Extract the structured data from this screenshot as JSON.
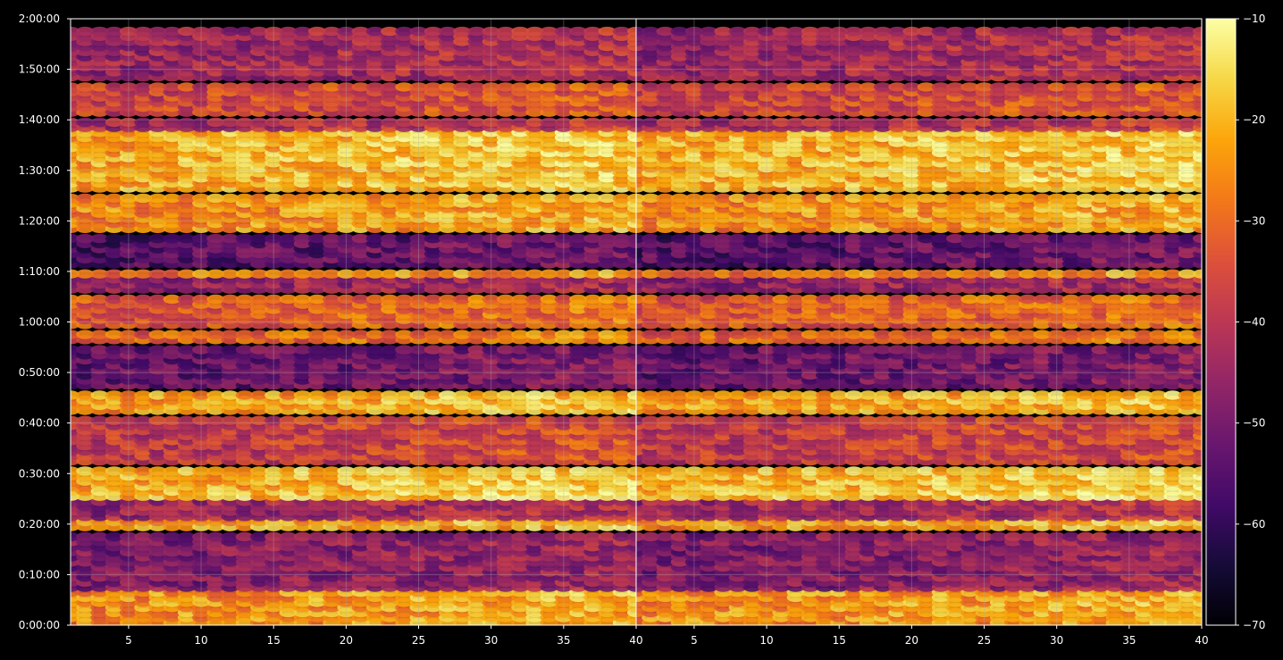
{
  "chart_data": {
    "type": "heatmap",
    "panels": [
      {
        "id": "left",
        "x_ticks": [
          5,
          10,
          15,
          20,
          25,
          30,
          35,
          40
        ],
        "xlim": [
          1,
          40
        ],
        "active_x_from": 1,
        "grid": true
      },
      {
        "id": "right",
        "x_ticks": [
          5,
          10,
          15,
          20,
          25,
          30,
          35,
          40
        ],
        "xlim": [
          1,
          40
        ],
        "active_x_from": 1,
        "grid": true
      }
    ],
    "y_axis": {
      "ylim_seconds": [
        0,
        7200
      ],
      "tick_seconds": [
        0,
        600,
        1200,
        1800,
        2400,
        3000,
        3600,
        4200,
        4800,
        5400,
        6000,
        6600,
        7200
      ],
      "tick_labels": [
        "0:00:00",
        "0:10:00",
        "0:20:00",
        "0:30:00",
        "0:40:00",
        "0:50:00",
        "1:00:00",
        "1:10:00",
        "1:20:00",
        "1:30:00",
        "1:40:00",
        "1:50:00",
        "2:00:00"
      ]
    },
    "colorbar": {
      "colormap": "inferno",
      "range": [
        -70,
        -10
      ],
      "tick_values": [
        -70,
        -60,
        -50,
        -40,
        -30,
        -20,
        -10
      ],
      "tick_labels": [
        "−70",
        "−60",
        "−50",
        "−40",
        "−30",
        "−20",
        "−10"
      ]
    },
    "row_spacing_seconds": 60,
    "bands": [
      {
        "from_s": 0,
        "to_s": 420,
        "level_dB": -26
      },
      {
        "from_s": 420,
        "to_s": 1080,
        "level_dB": -50
      },
      {
        "from_s": 1140,
        "to_s": 1260,
        "level_dB": -24
      },
      {
        "from_s": 1260,
        "to_s": 1500,
        "level_dB": -46
      },
      {
        "from_s": 1500,
        "to_s": 1620,
        "level_dB": -20
      },
      {
        "from_s": 1620,
        "to_s": 1860,
        "level_dB": -22
      },
      {
        "from_s": 1920,
        "to_s": 2460,
        "level_dB": -40
      },
      {
        "from_s": 2520,
        "to_s": 2760,
        "level_dB": -24
      },
      {
        "from_s": 2820,
        "to_s": 3300,
        "level_dB": -54
      },
      {
        "from_s": 3360,
        "to_s": 3480,
        "level_dB": -32
      },
      {
        "from_s": 3540,
        "to_s": 3900,
        "level_dB": -34
      },
      {
        "from_s": 3960,
        "to_s": 4140,
        "level_dB": -48
      },
      {
        "from_s": 4140,
        "to_s": 4200,
        "level_dB": -28
      },
      {
        "from_s": 4260,
        "to_s": 4620,
        "level_dB": -56
      },
      {
        "from_s": 4680,
        "to_s": 5100,
        "level_dB": -26
      },
      {
        "from_s": 5160,
        "to_s": 5880,
        "level_dB": -22
      },
      {
        "from_s": 5880,
        "to_s": 6000,
        "level_dB": -44
      },
      {
        "from_s": 6060,
        "to_s": 6420,
        "level_dB": -38
      },
      {
        "from_s": 6480,
        "to_s": 7080,
        "level_dB": -46
      }
    ]
  }
}
